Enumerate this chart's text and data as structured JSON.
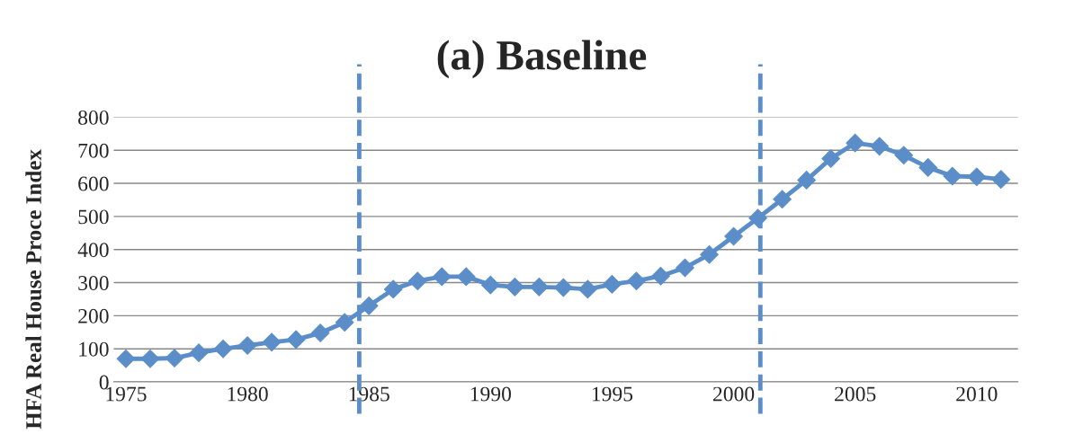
{
  "chart_data": {
    "type": "line",
    "title": "(a) Baseline",
    "ylabel": "HFA Real House Proce Index",
    "x": [
      1975,
      1976,
      1977,
      1978,
      1979,
      1980,
      1981,
      1982,
      1983,
      1984,
      1985,
      1986,
      1987,
      1988,
      1989,
      1990,
      1991,
      1992,
      1993,
      1994,
      1995,
      1996,
      1997,
      1998,
      1999,
      2000,
      2001,
      2002,
      2003,
      2004,
      2005,
      2006,
      2007,
      2008,
      2009,
      2010,
      2011
    ],
    "series": [
      {
        "color": "#5b8ec9",
        "values": [
          70,
          70,
          72,
          88,
          100,
          110,
          120,
          128,
          148,
          180,
          230,
          280,
          305,
          318,
          318,
          293,
          287,
          287,
          285,
          280,
          295,
          305,
          320,
          345,
          385,
          440,
          495,
          552,
          610,
          675,
          722,
          712,
          685,
          648,
          622,
          620,
          612
        ]
      }
    ],
    "xlim": [
      1974.5,
      2011.7
    ],
    "xticks": [
      1975,
      1980,
      1985,
      1990,
      1995,
      2000,
      2005,
      2010
    ],
    "ylim": [
      0,
      800
    ],
    "yticks": [
      0,
      100,
      200,
      300,
      400,
      500,
      600,
      700,
      800
    ],
    "grid": "y",
    "marker": "diamond",
    "line_style": "solid",
    "legend": false,
    "ref_lines": [
      {
        "axis": "x",
        "value": 1984.6,
        "color": "#5b8ec9",
        "line_style": "dashed"
      },
      {
        "axis": "x",
        "value": 2001.1,
        "color": "#5b8ec9",
        "line_style": "dashed"
      }
    ]
  }
}
